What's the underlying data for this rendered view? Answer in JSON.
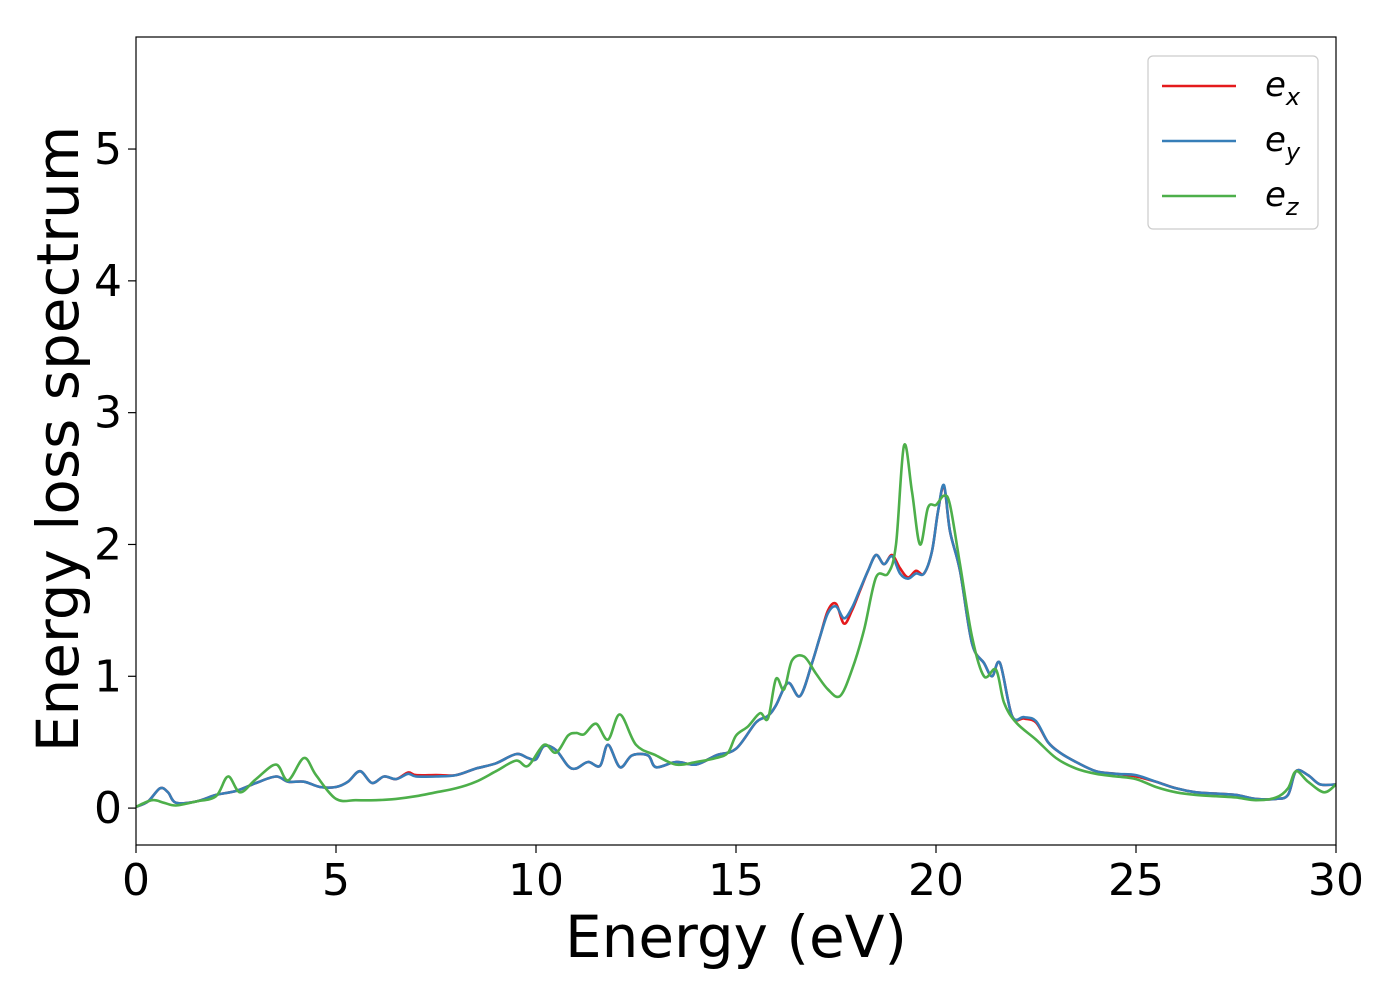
{
  "chart_data": {
    "type": "line",
    "title": "",
    "xlabel": "Energy (eV)",
    "ylabel": "Energy loss spectrum",
    "xlim": [
      0,
      30
    ],
    "ylim": [
      -0.28,
      5.85
    ],
    "xticks": [
      0,
      5,
      10,
      15,
      20,
      25,
      30
    ],
    "yticks": [
      0,
      1,
      2,
      3,
      4,
      5
    ],
    "grid": false,
    "legend_position": "top-right",
    "series": [
      {
        "name": "e_x",
        "legend_base": "e",
        "legend_sub": "x",
        "color": "#e41a1c",
        "x": [
          0,
          0.3,
          0.6,
          0.8,
          1.0,
          1.5,
          2.0,
          2.5,
          3.0,
          3.5,
          3.8,
          4.2,
          4.6,
          5.0,
          5.3,
          5.6,
          5.9,
          6.2,
          6.5,
          6.8,
          7.0,
          7.5,
          8.0,
          8.5,
          9.0,
          9.5,
          9.8,
          10.0,
          10.2,
          10.5,
          10.8,
          11.0,
          11.3,
          11.6,
          11.8,
          12.1,
          12.4,
          12.8,
          13.0,
          13.5,
          14.0,
          14.5,
          15.0,
          15.5,
          15.8,
          16.0,
          16.3,
          16.6,
          16.9,
          17.1,
          17.3,
          17.5,
          17.7,
          17.9,
          18.1,
          18.3,
          18.5,
          18.7,
          18.9,
          19.1,
          19.3,
          19.5,
          19.7,
          19.9,
          20.05,
          20.2,
          20.35,
          20.6,
          20.9,
          21.2,
          21.4,
          21.6,
          21.9,
          22.2,
          22.5,
          22.8,
          23.1,
          23.5,
          24.0,
          24.5,
          25.0,
          25.5,
          26.0,
          26.5,
          27.0,
          27.5,
          28.0,
          28.5,
          28.8,
          29.0,
          29.3,
          29.6,
          30.0
        ],
        "y": [
          0.01,
          0.05,
          0.15,
          0.12,
          0.04,
          0.05,
          0.1,
          0.13,
          0.19,
          0.24,
          0.2,
          0.2,
          0.16,
          0.16,
          0.2,
          0.28,
          0.19,
          0.24,
          0.22,
          0.27,
          0.25,
          0.25,
          0.25,
          0.3,
          0.34,
          0.41,
          0.38,
          0.37,
          0.47,
          0.44,
          0.32,
          0.3,
          0.35,
          0.32,
          0.48,
          0.31,
          0.4,
          0.4,
          0.31,
          0.35,
          0.33,
          0.4,
          0.45,
          0.65,
          0.7,
          0.78,
          0.95,
          0.85,
          1.1,
          1.3,
          1.5,
          1.55,
          1.4,
          1.5,
          1.65,
          1.8,
          1.92,
          1.85,
          1.92,
          1.82,
          1.75,
          1.8,
          1.78,
          1.95,
          2.25,
          2.44,
          2.1,
          1.8,
          1.25,
          1.1,
          1.0,
          1.1,
          0.7,
          0.68,
          0.65,
          0.5,
          0.42,
          0.35,
          0.28,
          0.26,
          0.24,
          0.2,
          0.15,
          0.12,
          0.11,
          0.1,
          0.07,
          0.07,
          0.1,
          0.28,
          0.25,
          0.18,
          0.18
        ]
      },
      {
        "name": "e_y",
        "legend_base": "e",
        "legend_sub": "y",
        "color": "#377eb8",
        "x": [
          0,
          0.3,
          0.6,
          0.8,
          1.0,
          1.5,
          2.0,
          2.5,
          3.0,
          3.5,
          3.8,
          4.2,
          4.6,
          5.0,
          5.3,
          5.6,
          5.9,
          6.2,
          6.5,
          6.8,
          7.0,
          7.5,
          8.0,
          8.5,
          9.0,
          9.5,
          9.8,
          10.0,
          10.2,
          10.5,
          10.8,
          11.0,
          11.3,
          11.6,
          11.8,
          12.1,
          12.4,
          12.8,
          13.0,
          13.5,
          14.0,
          14.5,
          15.0,
          15.5,
          15.8,
          16.0,
          16.3,
          16.6,
          16.9,
          17.1,
          17.3,
          17.5,
          17.7,
          17.9,
          18.1,
          18.3,
          18.5,
          18.7,
          18.9,
          19.1,
          19.3,
          19.5,
          19.7,
          19.9,
          20.05,
          20.2,
          20.35,
          20.6,
          20.9,
          21.2,
          21.4,
          21.6,
          21.9,
          22.2,
          22.5,
          22.8,
          23.1,
          23.5,
          24.0,
          24.5,
          25.0,
          25.5,
          26.0,
          26.5,
          27.0,
          27.5,
          28.0,
          28.5,
          28.8,
          29.0,
          29.3,
          29.6,
          30.0
        ],
        "y": [
          0.01,
          0.05,
          0.15,
          0.12,
          0.04,
          0.05,
          0.1,
          0.13,
          0.19,
          0.24,
          0.2,
          0.2,
          0.16,
          0.16,
          0.2,
          0.28,
          0.19,
          0.24,
          0.22,
          0.26,
          0.24,
          0.24,
          0.25,
          0.3,
          0.34,
          0.41,
          0.38,
          0.37,
          0.47,
          0.44,
          0.32,
          0.3,
          0.35,
          0.32,
          0.48,
          0.31,
          0.4,
          0.4,
          0.31,
          0.35,
          0.33,
          0.4,
          0.45,
          0.65,
          0.7,
          0.78,
          0.95,
          0.85,
          1.1,
          1.3,
          1.48,
          1.53,
          1.44,
          1.52,
          1.66,
          1.8,
          1.92,
          1.85,
          1.91,
          1.78,
          1.74,
          1.78,
          1.78,
          1.95,
          2.25,
          2.45,
          2.1,
          1.8,
          1.25,
          1.1,
          1.0,
          1.1,
          0.7,
          0.69,
          0.66,
          0.5,
          0.42,
          0.35,
          0.28,
          0.26,
          0.25,
          0.2,
          0.15,
          0.12,
          0.11,
          0.1,
          0.07,
          0.07,
          0.1,
          0.28,
          0.25,
          0.18,
          0.18
        ]
      },
      {
        "name": "e_z",
        "legend_base": "e",
        "legend_sub": "z",
        "color": "#4daf4a",
        "x": [
          0,
          0.4,
          0.7,
          1.0,
          1.5,
          2.0,
          2.3,
          2.6,
          3.0,
          3.5,
          3.8,
          4.2,
          4.5,
          5.0,
          5.5,
          6.0,
          6.5,
          7.0,
          7.5,
          8.0,
          8.5,
          9.0,
          9.5,
          9.8,
          10.2,
          10.5,
          10.8,
          11.0,
          11.2,
          11.5,
          11.8,
          12.1,
          12.5,
          13.0,
          13.5,
          14.0,
          14.5,
          14.8,
          15.0,
          15.3,
          15.6,
          15.8,
          16.0,
          16.2,
          16.4,
          16.7,
          17.0,
          17.3,
          17.6,
          17.9,
          18.2,
          18.5,
          18.8,
          19.0,
          19.2,
          19.4,
          19.6,
          19.8,
          20.0,
          20.2,
          20.35,
          20.6,
          20.9,
          21.2,
          21.5,
          21.7,
          22.0,
          22.5,
          23.0,
          23.5,
          24.0,
          24.5,
          25.0,
          25.5,
          26.0,
          26.5,
          27.0,
          27.5,
          28.0,
          28.5,
          28.8,
          29.0,
          29.3,
          29.7,
          30.0
        ],
        "y": [
          0.01,
          0.06,
          0.04,
          0.02,
          0.05,
          0.09,
          0.24,
          0.12,
          0.22,
          0.33,
          0.21,
          0.38,
          0.25,
          0.07,
          0.06,
          0.06,
          0.07,
          0.09,
          0.12,
          0.15,
          0.2,
          0.28,
          0.36,
          0.32,
          0.48,
          0.42,
          0.55,
          0.57,
          0.56,
          0.64,
          0.52,
          0.71,
          0.48,
          0.4,
          0.33,
          0.35,
          0.38,
          0.42,
          0.55,
          0.62,
          0.72,
          0.68,
          0.98,
          0.9,
          1.12,
          1.15,
          1.02,
          0.9,
          0.85,
          1.05,
          1.35,
          1.75,
          1.78,
          2.0,
          2.75,
          2.4,
          2.0,
          2.28,
          2.3,
          2.37,
          2.3,
          1.85,
          1.3,
          1.0,
          1.05,
          0.8,
          0.65,
          0.52,
          0.38,
          0.3,
          0.26,
          0.24,
          0.22,
          0.16,
          0.12,
          0.1,
          0.09,
          0.08,
          0.06,
          0.08,
          0.15,
          0.28,
          0.2,
          0.12,
          0.18
        ]
      }
    ]
  }
}
